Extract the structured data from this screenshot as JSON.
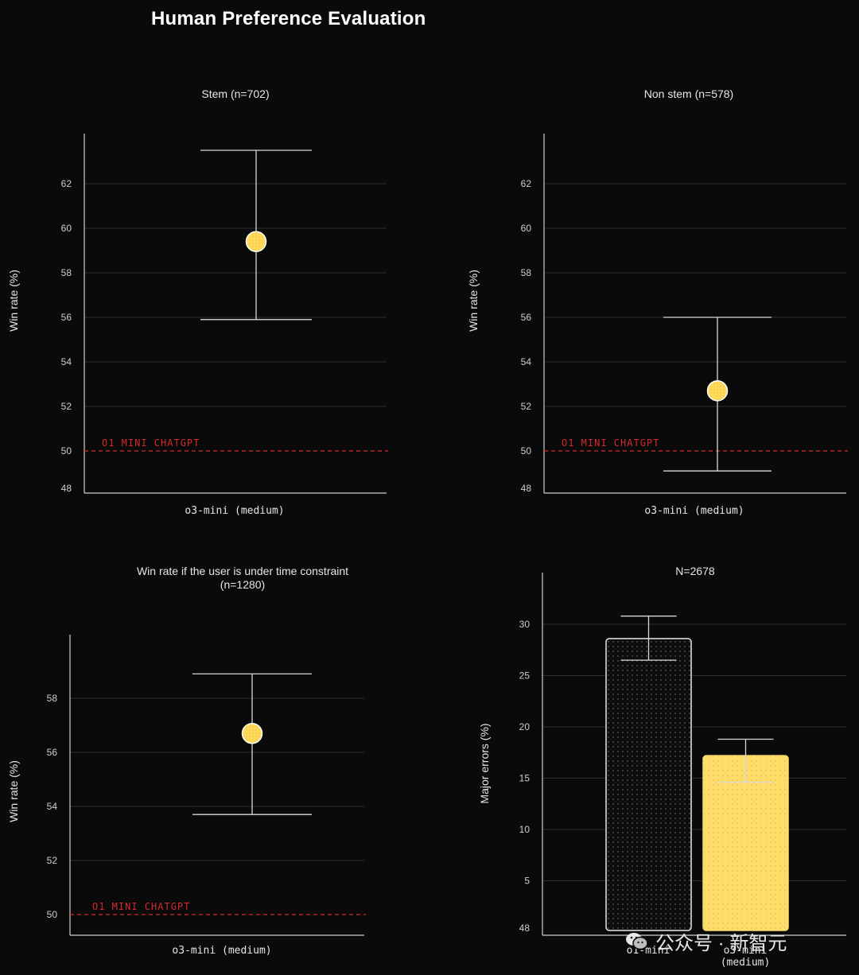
{
  "page": {
    "title": "Human Preference Evaluation"
  },
  "colors": {
    "background": "#0a0a0a",
    "marker": "#ffd95a",
    "baseline": "#d42a2a",
    "axis": "#cfcfcf",
    "grid": "#2e2e2e",
    "bar_o1": "#111111",
    "bar_o3": "#ffdd6b"
  },
  "chart_data": [
    {
      "id": "stem",
      "type": "scatter",
      "title": "Stem (n=702)",
      "ylabel": "Win rate (%)",
      "xlabel": "o3-mini (medium)",
      "ylim": [
        48,
        64
      ],
      "yticks": [
        "48",
        "50",
        "52",
        "54",
        "56",
        "58",
        "60",
        "62"
      ],
      "grid": true,
      "value": 59.4,
      "err_low": 55.9,
      "err_high": 63.5,
      "baseline": {
        "value": 50,
        "label": "O1 MINI CHATGPT"
      }
    },
    {
      "id": "nonstem",
      "type": "scatter",
      "title": "Non stem (n=578)",
      "ylabel": "Win rate (%)",
      "xlabel": "o3-mini (medium)",
      "ylim": [
        48,
        64
      ],
      "yticks": [
        "48",
        "50",
        "52",
        "54",
        "56",
        "58",
        "60",
        "62"
      ],
      "grid": true,
      "value": 52.7,
      "err_low": 49.1,
      "err_high": 56.0,
      "baseline": {
        "value": 50,
        "label": "O1 MINI CHATGPT"
      }
    },
    {
      "id": "time",
      "type": "scatter",
      "title": "Win rate if the user is under time constraint (n=1280)",
      "ylabel": "Win rate (%)",
      "xlabel": "o3-mini (medium)",
      "ylim": [
        49.2,
        59.2
      ],
      "yticks": [
        "50",
        "52",
        "54",
        "56",
        "58"
      ],
      "grid": true,
      "value": 56.7,
      "err_low": 53.7,
      "err_high": 58.9,
      "baseline": {
        "value": 50,
        "label": "O1 MINI CHATGPT"
      }
    },
    {
      "id": "errors",
      "type": "bar",
      "title": "N=2678",
      "ylabel": "Major errors (%)",
      "categories": [
        "o1-mini",
        "o3-mini (medium)"
      ],
      "values": [
        28.6,
        17.2
      ],
      "err_low": [
        26.5,
        14.6
      ],
      "err_high": [
        30.8,
        18.8
      ],
      "ylim": [
        0,
        34
      ],
      "yticks": [
        "5",
        "10",
        "15",
        "20",
        "25",
        "30"
      ],
      "bottom_tick": "48",
      "grid": true
    }
  ],
  "watermark": {
    "text": "公众号 · 新智元",
    "icon": "wechat-icon"
  }
}
